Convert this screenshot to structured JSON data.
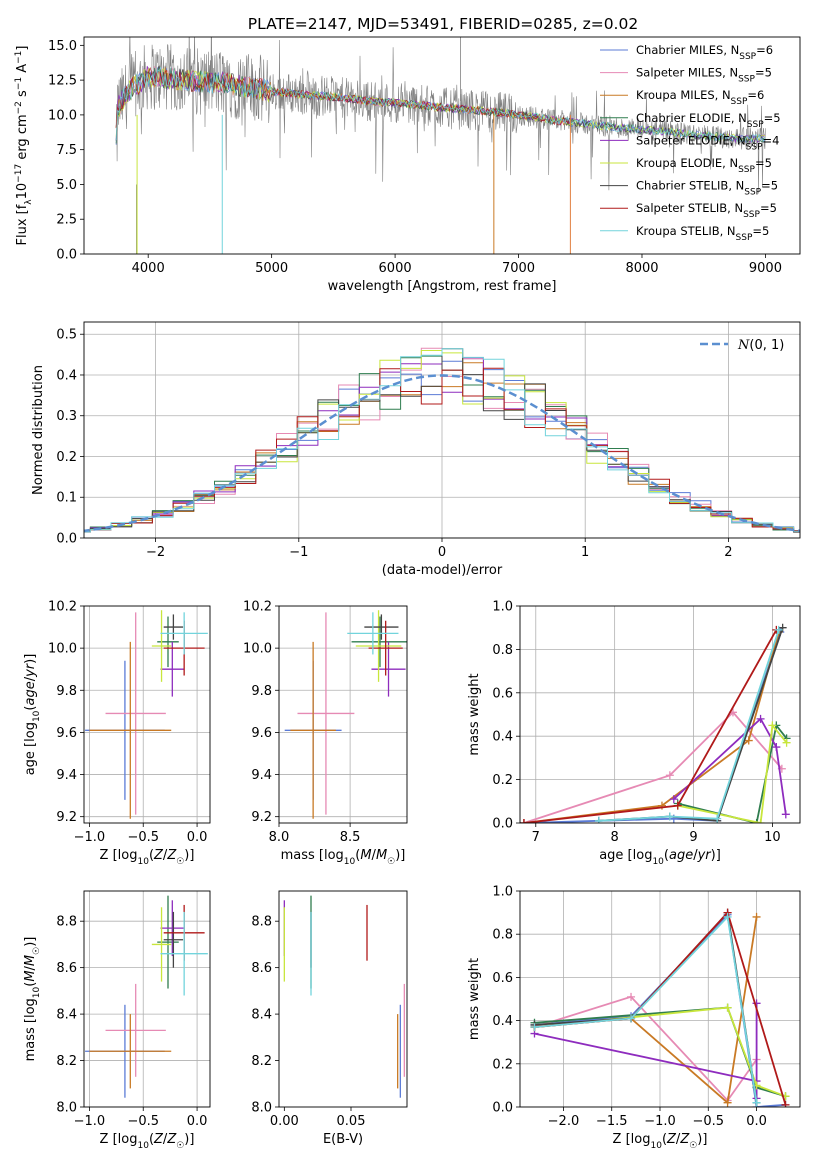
{
  "figure": {
    "title": "PLATE=2147, MJD=53491, FIBERID=0285, z=0.02"
  },
  "chart_data": [
    {
      "id": "spectrum",
      "type": "line",
      "xlabel": "wavelength [Angstrom, rest frame]",
      "ylabel": "Flux [fλ10⁻¹⁷ erg cm⁻² s⁻¹ A⁻¹]",
      "xlim": [
        3480,
        9280
      ],
      "ylim": [
        0,
        15.6
      ],
      "xticks": [
        4000,
        5000,
        6000,
        7000,
        8000,
        9000
      ],
      "yticks": [
        0.0,
        2.5,
        5.0,
        7.5,
        10.0,
        12.5,
        15.0
      ],
      "grid": false,
      "legend_position": "top-right",
      "series": [
        {
          "name": "Chabrier MILES, NSSP=6",
          "color": "#5b7bd6"
        },
        {
          "name": "Salpeter MILES, NSSP=5",
          "color": "#e68ab4"
        },
        {
          "name": "Kroupa MILES, NSSP=6",
          "color": "#c97a25"
        },
        {
          "name": "Chabrier ELODIE, NSSP=5",
          "color": "#2f7d4f"
        },
        {
          "name": "Salpeter ELODIE, NSSP=4",
          "color": "#8e2cbe"
        },
        {
          "name": "Kroupa ELODIE, NSSP=5",
          "color": "#c8e63c"
        },
        {
          "name": "Chabrier STELIB, NSSP=5",
          "color": "#444444"
        },
        {
          "name": "Salpeter STELIB, NSSP=5",
          "color": "#b01a1a"
        },
        {
          "name": "Kroupa STELIB, NSSP=5",
          "color": "#72d4dc"
        }
      ],
      "data_color": "#808080",
      "model_envelope": {
        "x": [
          3750,
          3850,
          4000,
          4200,
          4400,
          4600,
          4800,
          5000,
          5200,
          5500,
          5800,
          6100,
          6400,
          6700,
          7000,
          7300,
          7600,
          7900,
          8200,
          8500,
          8800
        ],
        "y": [
          10.5,
          11.8,
          12.8,
          12.6,
          12.4,
          12.3,
          12.0,
          11.7,
          11.5,
          11.3,
          11.0,
          10.8,
          10.5,
          10.3,
          10.0,
          9.6,
          9.3,
          9.0,
          8.8,
          8.5,
          8.3
        ]
      }
    },
    {
      "id": "residuals",
      "type": "line",
      "xlabel": "(data-model)/error",
      "ylabel": "Normed distribution",
      "xlim": [
        -2.5,
        2.5
      ],
      "ylim": [
        0,
        0.53
      ],
      "xticks": [
        -2,
        -1,
        0,
        1,
        2
      ],
      "yticks": [
        0.0,
        0.1,
        0.2,
        0.3,
        0.4,
        0.5
      ],
      "grid": true,
      "legend_position": "top-right",
      "series": [
        {
          "name": "N(0,1)",
          "color": "#5b8fd0",
          "style": "dashed"
        }
      ]
    },
    {
      "id": "age_vs_Z",
      "type": "scatter",
      "xlabel": "Z [log10(Z/Z☉)]",
      "ylabel": "age  [log10(age/yr)]",
      "xlim": [
        -1.05,
        0.12
      ],
      "ylim": [
        9.17,
        10.2
      ],
      "xticks": [
        -1.0,
        -0.5,
        0.0
      ],
      "yticks": [
        9.2,
        9.4,
        9.6,
        9.8,
        10.0,
        10.2
      ],
      "grid": true
    },
    {
      "id": "age_vs_mass",
      "type": "scatter",
      "xlabel": "mass [log10(M/M☉)]",
      "xlim": [
        8.0,
        8.9
      ],
      "ylim": [
        9.17,
        10.2
      ],
      "xticks": [
        8.0,
        8.5
      ],
      "yticks": [
        9.2,
        9.4,
        9.6,
        9.8,
        10.0,
        10.2
      ],
      "grid": true
    },
    {
      "id": "weight_vs_age",
      "type": "line",
      "xlabel": "age  [log10(age/yr)]",
      "ylabel": "mass weight",
      "xlim": [
        6.8,
        10.35
      ],
      "ylim": [
        0,
        1.0
      ],
      "xticks": [
        7,
        8,
        9,
        10
      ],
      "yticks": [
        0.0,
        0.2,
        0.4,
        0.6,
        0.8,
        1.0
      ],
      "grid": true
    },
    {
      "id": "mass_vs_Z",
      "type": "scatter",
      "xlabel": "Z [log10(Z/Z☉)]",
      "ylabel": "mass [log10(M/M☉)]",
      "xlim": [
        -1.05,
        0.12
      ],
      "ylim": [
        8.0,
        8.93
      ],
      "xticks": [
        -1.0,
        -0.5,
        0.0
      ],
      "yticks": [
        8.0,
        8.2,
        8.4,
        8.6,
        8.8
      ],
      "grid": true
    },
    {
      "id": "mass_vs_ebv",
      "type": "scatter",
      "xlabel": "E(B-V)",
      "xlim": [
        -0.004,
        0.092
      ],
      "ylim": [
        8.0,
        8.93
      ],
      "xticks": [
        0.0,
        0.05
      ],
      "yticks": [
        8.0,
        8.2,
        8.4,
        8.6,
        8.8
      ],
      "grid": false
    },
    {
      "id": "weight_vs_Z",
      "type": "line",
      "xlabel": "Z [log10(Z/Z☉)]",
      "ylabel": "mass weight",
      "xlim": [
        -2.45,
        0.45
      ],
      "ylim": [
        0,
        1.0
      ],
      "xticks": [
        -2.0,
        -1.5,
        -1.0,
        -0.5,
        0.0
      ],
      "yticks": [
        0.0,
        0.2,
        0.4,
        0.6,
        0.8,
        1.0
      ],
      "grid": true
    }
  ],
  "models": [
    {
      "color": "#5b7bd6",
      "Z": -0.67,
      "Zerr": 0.37,
      "age": 9.61,
      "ageerr": 0.33,
      "mass": 8.24,
      "masserr": 0.2,
      "ebv": 0.087,
      "ages": [
        6.85,
        7.8,
        8.75,
        9.3,
        10.1
      ],
      "wa": [
        0.0,
        0.01,
        0.02,
        0.01,
        0.88
      ],
      "Zs": [
        -2.3,
        -1.3,
        -0.3,
        0.0,
        0.3
      ],
      "wz": [
        0.38,
        0.42,
        0.89,
        0.0,
        0.01
      ]
    },
    {
      "color": "#e68ab4",
      "Z": -0.57,
      "Zerr": 0.28,
      "age": 9.69,
      "ageerr": 0.48,
      "mass": 8.33,
      "masserr": 0.2,
      "ebv": 0.09,
      "ages": [
        6.85,
        8.7,
        9.5,
        10.12
      ],
      "wa": [
        0.0,
        0.22,
        0.51,
        0.25
      ],
      "Zs": [
        -2.3,
        -1.3,
        -0.3,
        0.0
      ],
      "wz": [
        0.37,
        0.51,
        0.03,
        0.22
      ]
    },
    {
      "color": "#c97a25",
      "Z": -0.62,
      "Zerr": 0.38,
      "age": 9.61,
      "ageerr": 0.42,
      "mass": 8.24,
      "masserr": 0.16,
      "ebv": 0.085,
      "ages": [
        6.85,
        8.6,
        9.7,
        10.08
      ],
      "wa": [
        0.0,
        0.08,
        0.38,
        0.88
      ],
      "Zs": [
        -2.3,
        -1.3,
        -0.3,
        0.0
      ],
      "wz": [
        0.37,
        0.41,
        0.02,
        0.88
      ]
    },
    {
      "color": "#2f7d4f",
      "Z": -0.27,
      "Zerr": 0.1,
      "age": 10.03,
      "ageerr": 0.12,
      "mass": 8.71,
      "masserr": 0.2,
      "ebv": 0.02,
      "ages": [
        8.8,
        9.8,
        10.05,
        10.18
      ],
      "wa": [
        0.09,
        0.0,
        0.45,
        0.39
      ],
      "Zs": [
        -2.3,
        -0.3,
        0.0,
        0.3
      ],
      "wz": [
        0.39,
        0.46,
        0.09,
        0.05
      ]
    },
    {
      "color": "#8e2cbe",
      "Z": -0.23,
      "Zerr": 0.11,
      "age": 9.9,
      "ageerr": 0.13,
      "mass": 8.77,
      "masserr": 0.12,
      "ebv": 0.0,
      "ages": [
        8.75,
        9.85,
        10.05,
        10.17
      ],
      "wa": [
        0.11,
        0.48,
        0.35,
        0.04
      ],
      "Zs": [
        -2.3,
        0.0,
        0.0,
        0.0
      ],
      "wz": [
        0.34,
        0.12,
        0.48,
        0.04
      ]
    },
    {
      "color": "#c8e63c",
      "Z": -0.33,
      "Zerr": 0.09,
      "age": 10.01,
      "ageerr": 0.17,
      "mass": 8.7,
      "masserr": 0.16,
      "ebv": 0.0,
      "ages": [
        8.8,
        9.85,
        10.0,
        10.18
      ],
      "wa": [
        0.08,
        0.0,
        0.45,
        0.37
      ],
      "Zs": [
        -2.3,
        -0.3,
        0.0,
        0.3
      ],
      "wz": [
        0.37,
        0.46,
        0.1,
        0.05
      ]
    },
    {
      "color": "#444444",
      "Z": -0.22,
      "Zerr": 0.09,
      "age": 10.1,
      "ageerr": 0.06,
      "mass": 8.72,
      "masserr": 0.12,
      "ebv": 0.02,
      "ages": [
        7.8,
        8.7,
        9.3,
        10.13
      ],
      "wa": [
        0.01,
        0.03,
        0.01,
        0.9
      ],
      "Zs": [
        -2.3,
        -1.3,
        -0.3,
        0.0
      ],
      "wz": [
        0.38,
        0.41,
        0.9,
        0.02
      ]
    },
    {
      "color": "#b01a1a",
      "Z": -0.12,
      "Zerr": 0.19,
      "age": 10.0,
      "ageerr": 0.13,
      "mass": 8.75,
      "masserr": 0.12,
      "ebv": 0.062,
      "ages": [
        6.85,
        8.8,
        10.05
      ],
      "wa": [
        0.0,
        0.08,
        0.89
      ],
      "Zs": [
        -2.3,
        -1.3,
        -0.3,
        0.3
      ],
      "wz": [
        0.37,
        0.41,
        0.9,
        0.01
      ]
    },
    {
      "color": "#72d4dc",
      "Z": -0.12,
      "Zerr": 0.22,
      "age": 10.07,
      "ageerr": 0.1,
      "mass": 8.66,
      "masserr": 0.18,
      "ebv": 0.02,
      "ages": [
        7.8,
        8.7,
        9.3,
        10.08
      ],
      "wa": [
        0.01,
        0.03,
        0.02,
        0.89
      ],
      "Zs": [
        -2.3,
        -1.3,
        -0.3,
        0.0
      ],
      "wz": [
        0.37,
        0.41,
        0.88,
        0.02
      ]
    }
  ]
}
